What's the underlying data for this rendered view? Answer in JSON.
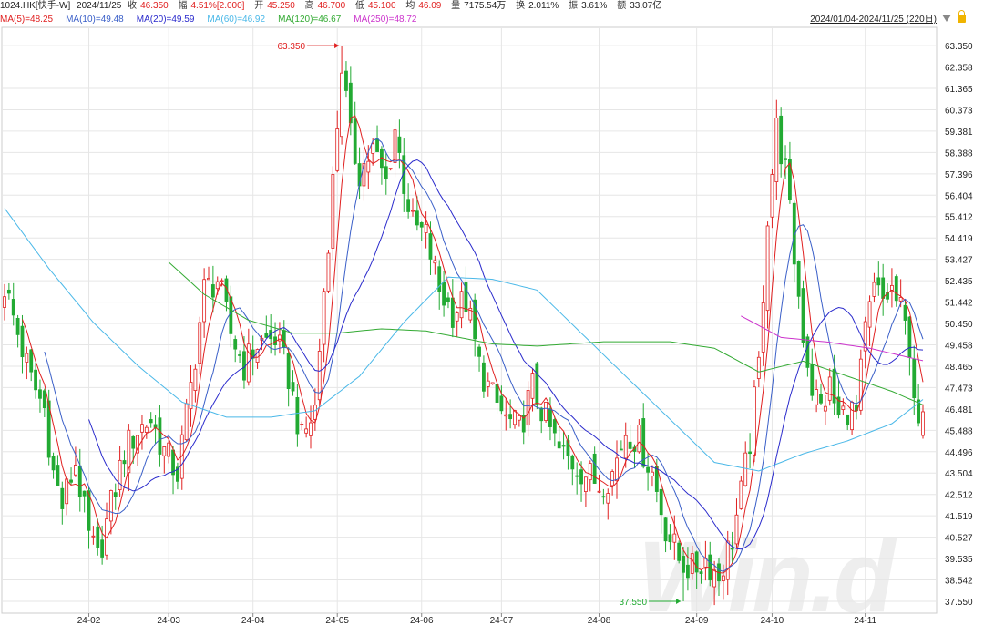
{
  "header": {
    "code": "1024.HK[快手-W]",
    "date": "2024/11/25",
    "close_label": "收",
    "close_value": "46.350",
    "change_label": "幅",
    "change_value": "4.51%[2.000]",
    "open_label": "开",
    "open_value": "45.250",
    "high_label": "高",
    "high_value": "46.700",
    "low_label": "低",
    "low_value": "45.100",
    "avg_label": "均",
    "avg_value": "46.09",
    "volume_label": "量",
    "volume_value": "7175.54万",
    "turnover_label": "换",
    "turnover_value": "2.011%",
    "amplitude_label": "振",
    "amplitude_value": "3.61%",
    "amount_label": "额",
    "amount_value": "33.07亿",
    "range": "2024/01/04-2024/11/25 (220日)"
  },
  "ma_legend": [
    {
      "label": "MA(5)=48.25",
      "color": "#e02020"
    },
    {
      "label": "MA(10)=49.48",
      "color": "#3a5fc8"
    },
    {
      "label": "MA(20)=49.59",
      "color": "#2a2acc"
    },
    {
      "label": "MA(60)=46.92",
      "color": "#4ab8e8"
    },
    {
      "label": "MA(120)=46.67",
      "color": "#33aa33"
    },
    {
      "label": "MA(250)=48.72",
      "color": "#cc33cc"
    }
  ],
  "watermark": "Win.d",
  "chart_data": {
    "type": "candlestick",
    "up_color": "#e02020",
    "down_color": "#22aa33",
    "ylim": [
      37.0,
      64.2
    ],
    "y_ticks": [
      "63.350",
      "62.358",
      "61.365",
      "60.373",
      "59.381",
      "58.388",
      "57.396",
      "56.404",
      "55.412",
      "54.419",
      "53.427",
      "52.435",
      "51.442",
      "50.450",
      "49.458",
      "48.465",
      "47.473",
      "46.481",
      "45.488",
      "44.496",
      "43.504",
      "42.512",
      "41.519",
      "40.527",
      "39.535",
      "38.542",
      "37.550"
    ],
    "x_ticks": [
      {
        "label": "24-02",
        "index": 19
      },
      {
        "label": "24-03",
        "index": 37
      },
      {
        "label": "24-04",
        "index": 56
      },
      {
        "label": "24-05",
        "index": 75
      },
      {
        "label": "24-06",
        "index": 94
      },
      {
        "label": "24-07",
        "index": 112
      },
      {
        "label": "24-08",
        "index": 134
      },
      {
        "label": "24-09",
        "index": 156
      },
      {
        "label": "24-10",
        "index": 173
      },
      {
        "label": "24-11",
        "index": 194
      }
    ],
    "annotations": [
      {
        "label": "63.350",
        "index": 76,
        "value": 63.35,
        "type": "high"
      },
      {
        "label": "37.550",
        "index": 153,
        "value": 37.55,
        "type": "low"
      }
    ],
    "anchors": [
      [
        0,
        52.2
      ],
      [
        3,
        50.0
      ],
      [
        6,
        47.8
      ],
      [
        9,
        46.5
      ],
      [
        11,
        43.5
      ],
      [
        13,
        42.0
      ],
      [
        16,
        44.0
      ],
      [
        19,
        40.5
      ],
      [
        21,
        39.5
      ],
      [
        24,
        42.0
      ],
      [
        27,
        44.5
      ],
      [
        30,
        45.5
      ],
      [
        33,
        46.0
      ],
      [
        36,
        44.5
      ],
      [
        39,
        43.5
      ],
      [
        42,
        47.5
      ],
      [
        45,
        52.0
      ],
      [
        48,
        52.5
      ],
      [
        51,
        50.0
      ],
      [
        54,
        48.5
      ],
      [
        57,
        49.5
      ],
      [
        61,
        49.8
      ],
      [
        64,
        48.0
      ],
      [
        67,
        45.0
      ],
      [
        70,
        46.5
      ],
      [
        72,
        52.0
      ],
      [
        74,
        57.0
      ],
      [
        76,
        62.5
      ],
      [
        78,
        59.0
      ],
      [
        80,
        57.5
      ],
      [
        83,
        58.5
      ],
      [
        86,
        57.0
      ],
      [
        88,
        59.5
      ],
      [
        90,
        57.0
      ],
      [
        92,
        55.0
      ],
      [
        95,
        54.5
      ],
      [
        98,
        52.0
      ],
      [
        101,
        51.0
      ],
      [
        104,
        51.5
      ],
      [
        107,
        48.5
      ],
      [
        110,
        47.0
      ],
      [
        113,
        46.0
      ],
      [
        116,
        45.5
      ],
      [
        119,
        47.5
      ],
      [
        122,
        46.0
      ],
      [
        125,
        44.5
      ],
      [
        128,
        44.0
      ],
      [
        131,
        43.5
      ],
      [
        134,
        43.0
      ],
      [
        137,
        43.5
      ],
      [
        140,
        45.5
      ],
      [
        143,
        45.0
      ],
      [
        146,
        43.5
      ],
      [
        149,
        41.0
      ],
      [
        152,
        39.5
      ],
      [
        155,
        39.0
      ],
      [
        158,
        39.5
      ],
      [
        161,
        38.7
      ],
      [
        164,
        40.5
      ],
      [
        166,
        42.5
      ],
      [
        168,
        45.0
      ],
      [
        170,
        48.5
      ],
      [
        172,
        55.5
      ],
      [
        174,
        59.5
      ],
      [
        176,
        57.5
      ],
      [
        178,
        53.5
      ],
      [
        180,
        50.0
      ],
      [
        182,
        47.5
      ],
      [
        184,
        46.5
      ],
      [
        186,
        47.5
      ],
      [
        188,
        46.0
      ],
      [
        190,
        46.5
      ],
      [
        192,
        46.2
      ],
      [
        194,
        50.0
      ],
      [
        196,
        52.0
      ],
      [
        198,
        51.5
      ],
      [
        200,
        52.0
      ],
      [
        202,
        51.0
      ],
      [
        204,
        49.5
      ],
      [
        206,
        45.2
      ],
      [
        207,
        46.35
      ]
    ],
    "ma_lines": {
      "MA60": [
        [
          0,
          55.8
        ],
        [
          10,
          53.0
        ],
        [
          20,
          50.5
        ],
        [
          30,
          48.5
        ],
        [
          40,
          46.8
        ],
        [
          50,
          46.1
        ],
        [
          60,
          46.1
        ],
        [
          70,
          46.4
        ],
        [
          80,
          48.0
        ],
        [
          90,
          50.5
        ],
        [
          100,
          52.6
        ],
        [
          110,
          52.5
        ],
        [
          120,
          52.0
        ],
        [
          130,
          50.0
        ],
        [
          140,
          48.0
        ],
        [
          150,
          46.0
        ],
        [
          160,
          44.0
        ],
        [
          170,
          43.6
        ],
        [
          180,
          44.4
        ],
        [
          190,
          45.0
        ],
        [
          200,
          45.8
        ],
        [
          207,
          46.92
        ]
      ],
      "MA120": [
        [
          37,
          53.3
        ],
        [
          45,
          51.8
        ],
        [
          55,
          50.6
        ],
        [
          65,
          50.0
        ],
        [
          75,
          50.0
        ],
        [
          85,
          50.2
        ],
        [
          95,
          50.1
        ],
        [
          110,
          49.5
        ],
        [
          120,
          49.4
        ],
        [
          135,
          49.6
        ],
        [
          150,
          49.6
        ],
        [
          160,
          49.3
        ],
        [
          170,
          48.2
        ],
        [
          180,
          48.7
        ],
        [
          190,
          48.0
        ],
        [
          200,
          47.3
        ],
        [
          207,
          46.67
        ]
      ],
      "MA250": [
        [
          166,
          50.8
        ],
        [
          175,
          49.8
        ],
        [
          185,
          49.6
        ],
        [
          195,
          49.3
        ],
        [
          207,
          48.72
        ]
      ]
    },
    "ma_spans": {
      "MA5": 5,
      "MA10": 10,
      "MA20": 20
    }
  }
}
